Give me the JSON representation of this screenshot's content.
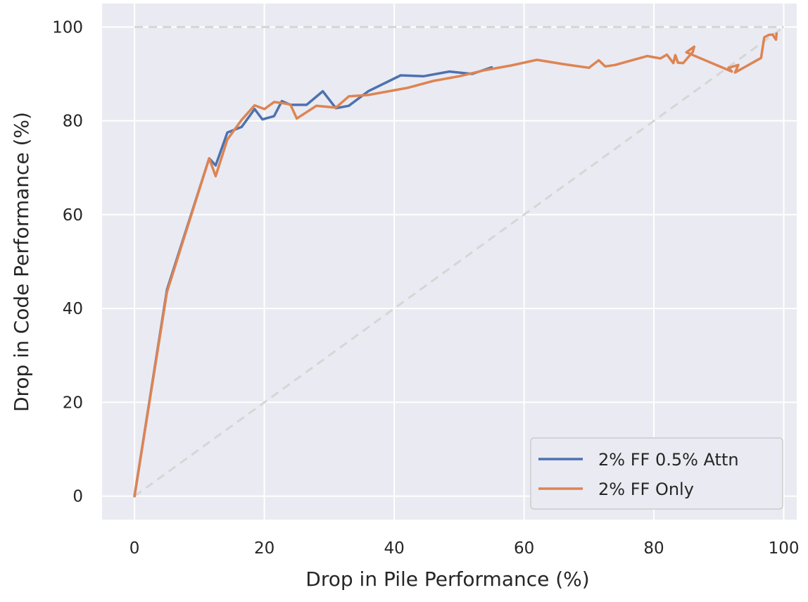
{
  "chart_data": {
    "type": "line",
    "title": "",
    "xlabel": "Drop in Pile Performance (%)",
    "ylabel": "Drop in Code Performance (%)",
    "xlim": [
      -5,
      102
    ],
    "ylim": [
      -5,
      105
    ],
    "xticks": [
      0,
      20,
      40,
      60,
      80,
      100
    ],
    "yticks": [
      0,
      20,
      40,
      60,
      80,
      100
    ],
    "xtick_labels": [
      "0",
      "20",
      "40",
      "60",
      "80",
      "100"
    ],
    "ytick_labels": [
      "0",
      "20",
      "40",
      "60",
      "80",
      "100"
    ],
    "grid": true,
    "legend_position": "lower-right",
    "colors": {
      "series_1": "#4c72b0",
      "series_2": "#dd8452",
      "reference": "#d6d6d6",
      "background": "#eaeaf2"
    },
    "reference_lines": [
      {
        "name": "upper bound",
        "x": [
          0,
          100
        ],
        "y": [
          100,
          100
        ],
        "style": "dashed"
      },
      {
        "name": "diagonal",
        "x": [
          0,
          100
        ],
        "y": [
          0,
          100
        ],
        "style": "dashed"
      }
    ],
    "series": [
      {
        "name": "2% FF 0.5% Attn",
        "x": [
          0,
          5,
          11.5,
          12.5,
          14.3,
          16.5,
          18.5,
          19.7,
          21.5,
          22.7,
          24,
          26.5,
          29,
          31,
          33,
          36,
          41,
          44.5,
          48.5,
          52,
          55
        ],
        "y": [
          0,
          44,
          72,
          70.5,
          77.5,
          78.7,
          82.5,
          80.3,
          81,
          84.2,
          83.4,
          83.4,
          86.3,
          82.7,
          83.2,
          86.3,
          89.7,
          89.5,
          90.5,
          90,
          91.4
        ]
      },
      {
        "name": "2% FF Only",
        "x": [
          0,
          5,
          11.5,
          12.5,
          14.3,
          16.5,
          18.5,
          20,
          21.5,
          22.7,
          24,
          25,
          28,
          31,
          33,
          36,
          42,
          46,
          50,
          54,
          58,
          62,
          66,
          70,
          71.5,
          72.5,
          74,
          79,
          81,
          82,
          83,
          83.3,
          83.7,
          84.5,
          86,
          86.2,
          85,
          92,
          91.5,
          93,
          92.5,
          96.5,
          97,
          97.7,
          98.3,
          98.5,
          98.8,
          98.9
        ],
        "y": [
          0,
          43.5,
          72,
          68.2,
          76,
          80.2,
          83.3,
          82.5,
          84,
          83.8,
          83.5,
          80.5,
          83.2,
          82.8,
          85.2,
          85.5,
          87,
          88.5,
          89.5,
          90.8,
          91.8,
          93,
          92.1,
          91.3,
          92.9,
          91.6,
          91.9,
          93.8,
          93.3,
          94.1,
          92.3,
          94,
          92.4,
          92.3,
          94.7,
          95.8,
          94.6,
          90.5,
          91.3,
          91.9,
          90.3,
          93.4,
          97.8,
          98.3,
          98.4,
          97.9,
          97.3,
          98.6
        ]
      }
    ]
  }
}
